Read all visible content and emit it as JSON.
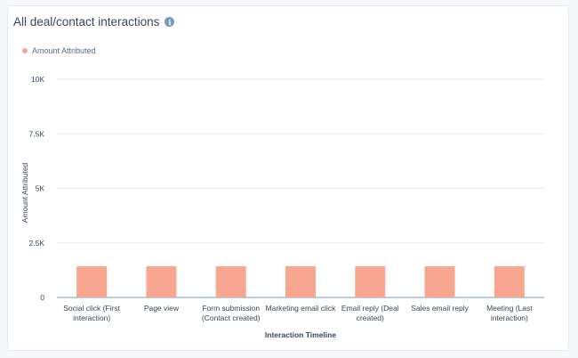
{
  "header": {
    "title": "All deal/contact interactions",
    "info_icon": "info-icon"
  },
  "legend": {
    "label": "Amount Attributed",
    "color": "#f8a690"
  },
  "chart_data": {
    "type": "bar",
    "title": "All deal/contact interactions",
    "xlabel": "Interaction Timeline",
    "ylabel": "Amount Attributed",
    "ylim": [
      0,
      10000
    ],
    "yticks": [
      {
        "value": 0,
        "label": "0"
      },
      {
        "value": 2500,
        "label": "2.5K"
      },
      {
        "value": 5000,
        "label": "5K"
      },
      {
        "value": 7500,
        "label": "7.5K"
      },
      {
        "value": 10000,
        "label": "10K"
      }
    ],
    "grid": true,
    "legend_position": "top-left",
    "categories": [
      [
        "Social click (First",
        "interaction)"
      ],
      [
        "Page view"
      ],
      [
        "Form submission",
        "(Contact created)"
      ],
      [
        "Marketing email click"
      ],
      [
        "Email reply (Deal",
        "created)"
      ],
      [
        "Sales email reply"
      ],
      [
        "Meeting (Last",
        "interaction)"
      ]
    ],
    "series": [
      {
        "name": "Amount Attributed",
        "color": "#f8a690",
        "values": [
          1430,
          1430,
          1430,
          1430,
          1430,
          1430,
          1430
        ]
      }
    ]
  }
}
